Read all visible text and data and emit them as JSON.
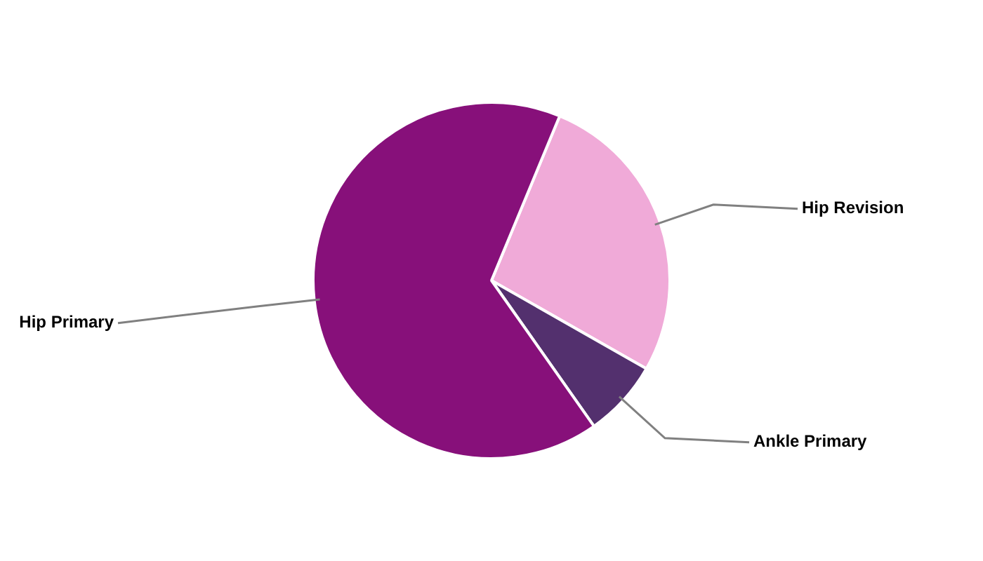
{
  "chart_data": {
    "type": "pie",
    "categories": [
      "Hip Revision",
      "Ankle Primary",
      "Hip Primary"
    ],
    "values": [
      27,
      7,
      66
    ],
    "colors": [
      "#f0aad8",
      "#53306e",
      "#87107a"
    ],
    "legend": false
  }
}
